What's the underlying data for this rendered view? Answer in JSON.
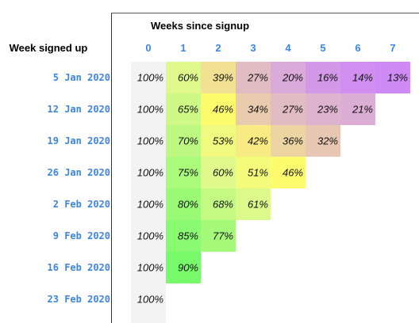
{
  "chart_data": {
    "type": "heatmap",
    "title": "Weeks since signup",
    "ylabel": "Week signed up",
    "columns": [
      "0",
      "1",
      "2",
      "3",
      "4",
      "5",
      "6",
      "7"
    ],
    "rows": [
      "5 Jan 2020",
      "12 Jan 2020",
      "19 Jan 2020",
      "26 Jan 2020",
      "2 Feb 2020",
      "9 Feb 2020",
      "16 Feb 2020",
      "23 Feb 2020"
    ],
    "values": [
      [
        100,
        60,
        39,
        27,
        20,
        16,
        14,
        13
      ],
      [
        100,
        65,
        46,
        34,
        27,
        23,
        21
      ],
      [
        100,
        70,
        53,
        42,
        36,
        32
      ],
      [
        100,
        75,
        60,
        51,
        46
      ],
      [
        100,
        80,
        68,
        61
      ],
      [
        100,
        85,
        77
      ],
      [
        100,
        90
      ],
      [
        100
      ]
    ],
    "value_suffix": "%",
    "colors": {
      "label": "#3d85e0",
      "week0": "#f3f3f3",
      "scale": [
        "#cf8bf5",
        "#dcaed6",
        "#e9ccad",
        "#fffb6e",
        "#dff98d",
        "#78fa6b"
      ]
    }
  }
}
